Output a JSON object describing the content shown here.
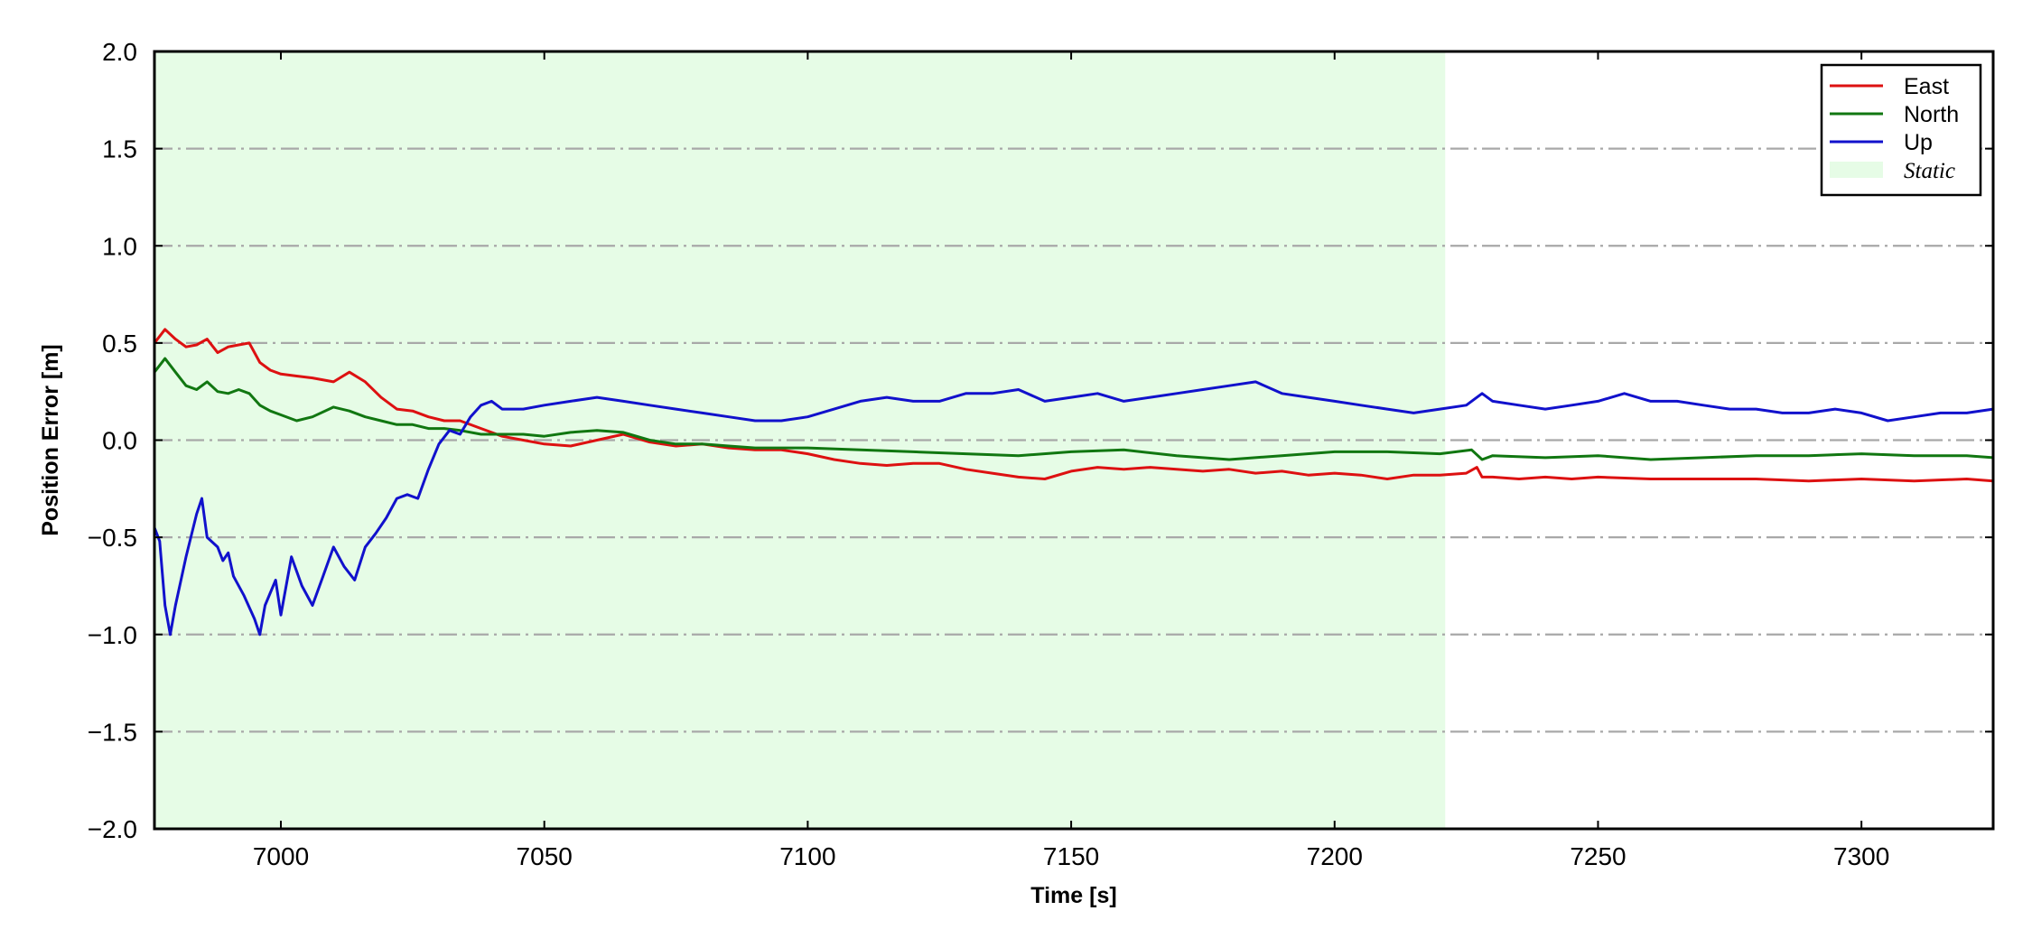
{
  "chart_data": {
    "type": "line",
    "title": "",
    "xlabel": "Time [s]",
    "ylabel": "Position Error [m]",
    "xlim": [
      6976,
      7325
    ],
    "ylim": [
      -2.0,
      2.0
    ],
    "x_ticks": [
      7000,
      7050,
      7100,
      7150,
      7200,
      7250,
      7300
    ],
    "y_ticks": [
      2.0,
      1.5,
      1.0,
      0.5,
      0.0,
      -0.5,
      -1.0,
      -1.5,
      -2.0
    ],
    "y_tick_labels": [
      "2.0",
      "1.5",
      "1.0",
      "0.5",
      "0.0",
      "−0.5",
      "−1.0",
      "−1.5",
      "−2.0"
    ],
    "grid": "horizontal dash-dot",
    "legend_position": "top-right",
    "shaded_region": {
      "name": "Static",
      "x": [
        6976,
        7221
      ],
      "color": "#e6fce6"
    },
    "series": [
      {
        "name": "East",
        "color": "#dd1111",
        "x": [
          6976,
          6978,
          6980,
          6982,
          6984,
          6986,
          6988,
          6990,
          6992,
          6994,
          6996,
          6998,
          7000,
          7003,
          7006,
          7010,
          7013,
          7016,
          7019,
          7022,
          7025,
          7028,
          7031,
          7034,
          7038,
          7042,
          7046,
          7050,
          7055,
          7060,
          7065,
          7070,
          7075,
          7080,
          7085,
          7090,
          7095,
          7100,
          7105,
          7110,
          7115,
          7120,
          7125,
          7130,
          7135,
          7140,
          7145,
          7150,
          7155,
          7160,
          7165,
          7170,
          7175,
          7180,
          7185,
          7190,
          7195,
          7200,
          7205,
          7210,
          7215,
          7220,
          7225,
          7227,
          7228,
          7230,
          7235,
          7240,
          7245,
          7250,
          7260,
          7270,
          7280,
          7290,
          7300,
          7310,
          7320,
          7325
        ],
        "values": [
          0.5,
          0.57,
          0.52,
          0.48,
          0.49,
          0.52,
          0.45,
          0.48,
          0.49,
          0.5,
          0.4,
          0.36,
          0.34,
          0.33,
          0.32,
          0.3,
          0.35,
          0.3,
          0.22,
          0.16,
          0.15,
          0.12,
          0.1,
          0.1,
          0.06,
          0.02,
          0.0,
          -0.02,
          -0.03,
          0.0,
          0.03,
          -0.01,
          -0.03,
          -0.02,
          -0.04,
          -0.05,
          -0.05,
          -0.07,
          -0.1,
          -0.12,
          -0.13,
          -0.12,
          -0.12,
          -0.15,
          -0.17,
          -0.19,
          -0.2,
          -0.16,
          -0.14,
          -0.15,
          -0.14,
          -0.15,
          -0.16,
          -0.15,
          -0.17,
          -0.16,
          -0.18,
          -0.17,
          -0.18,
          -0.2,
          -0.18,
          -0.18,
          -0.17,
          -0.14,
          -0.19,
          -0.19,
          -0.2,
          -0.19,
          -0.2,
          -0.19,
          -0.2,
          -0.2,
          -0.2,
          -0.21,
          -0.2,
          -0.21,
          -0.2,
          -0.21
        ]
      },
      {
        "name": "North",
        "color": "#117711",
        "x": [
          6976,
          6978,
          6980,
          6982,
          6984,
          6986,
          6988,
          6990,
          6992,
          6994,
          6996,
          6998,
          7000,
          7003,
          7006,
          7010,
          7013,
          7016,
          7019,
          7022,
          7025,
          7028,
          7031,
          7034,
          7038,
          7042,
          7046,
          7050,
          7055,
          7060,
          7065,
          7070,
          7075,
          7080,
          7085,
          7090,
          7095,
          7100,
          7110,
          7120,
          7130,
          7140,
          7150,
          7160,
          7170,
          7180,
          7190,
          7200,
          7210,
          7220,
          7226,
          7228,
          7230,
          7240,
          7250,
          7260,
          7270,
          7280,
          7290,
          7300,
          7310,
          7320,
          7325
        ],
        "values": [
          0.35,
          0.42,
          0.35,
          0.28,
          0.26,
          0.3,
          0.25,
          0.24,
          0.26,
          0.24,
          0.18,
          0.15,
          0.13,
          0.1,
          0.12,
          0.17,
          0.15,
          0.12,
          0.1,
          0.08,
          0.08,
          0.06,
          0.06,
          0.05,
          0.03,
          0.03,
          0.03,
          0.02,
          0.04,
          0.05,
          0.04,
          0.0,
          -0.02,
          -0.02,
          -0.03,
          -0.04,
          -0.04,
          -0.04,
          -0.05,
          -0.06,
          -0.07,
          -0.08,
          -0.06,
          -0.05,
          -0.08,
          -0.1,
          -0.08,
          -0.06,
          -0.06,
          -0.07,
          -0.05,
          -0.1,
          -0.08,
          -0.09,
          -0.08,
          -0.1,
          -0.09,
          -0.08,
          -0.08,
          -0.07,
          -0.08,
          -0.08,
          -0.09
        ]
      },
      {
        "name": "Up",
        "color": "#1111cc",
        "x": [
          6976,
          6977,
          6978,
          6979,
          6980,
          6982,
          6984,
          6985,
          6986,
          6988,
          6989,
          6990,
          6991,
          6993,
          6995,
          6996,
          6997,
          6999,
          7000,
          7002,
          7004,
          7006,
          7008,
          7010,
          7012,
          7014,
          7016,
          7018,
          7020,
          7022,
          7024,
          7026,
          7028,
          7030,
          7032,
          7034,
          7036,
          7038,
          7040,
          7042,
          7046,
          7050,
          7055,
          7060,
          7065,
          7070,
          7075,
          7080,
          7085,
          7090,
          7095,
          7100,
          7105,
          7110,
          7115,
          7120,
          7125,
          7130,
          7135,
          7140,
          7145,
          7150,
          7155,
          7160,
          7165,
          7170,
          7175,
          7180,
          7185,
          7190,
          7195,
          7200,
          7205,
          7210,
          7215,
          7220,
          7225,
          7228,
          7230,
          7235,
          7240,
          7245,
          7250,
          7255,
          7260,
          7265,
          7270,
          7275,
          7280,
          7285,
          7290,
          7295,
          7300,
          7305,
          7310,
          7315,
          7320,
          7325
        ],
        "values": [
          -0.45,
          -0.52,
          -0.85,
          -1.0,
          -0.85,
          -0.6,
          -0.38,
          -0.3,
          -0.5,
          -0.55,
          -0.62,
          -0.58,
          -0.7,
          -0.8,
          -0.92,
          -1.0,
          -0.85,
          -0.72,
          -0.9,
          -0.6,
          -0.75,
          -0.85,
          -0.7,
          -0.55,
          -0.65,
          -0.72,
          -0.55,
          -0.48,
          -0.4,
          -0.3,
          -0.28,
          -0.3,
          -0.15,
          -0.02,
          0.05,
          0.03,
          0.12,
          0.18,
          0.2,
          0.16,
          0.16,
          0.18,
          0.2,
          0.22,
          0.2,
          0.18,
          0.16,
          0.14,
          0.12,
          0.1,
          0.1,
          0.12,
          0.16,
          0.2,
          0.22,
          0.2,
          0.2,
          0.24,
          0.24,
          0.26,
          0.2,
          0.22,
          0.24,
          0.2,
          0.22,
          0.24,
          0.26,
          0.28,
          0.3,
          0.24,
          0.22,
          0.2,
          0.18,
          0.16,
          0.14,
          0.16,
          0.18,
          0.24,
          0.2,
          0.18,
          0.16,
          0.18,
          0.2,
          0.24,
          0.2,
          0.2,
          0.18,
          0.16,
          0.16,
          0.14,
          0.14,
          0.16,
          0.14,
          0.1,
          0.12,
          0.14,
          0.14,
          0.16
        ]
      }
    ]
  }
}
